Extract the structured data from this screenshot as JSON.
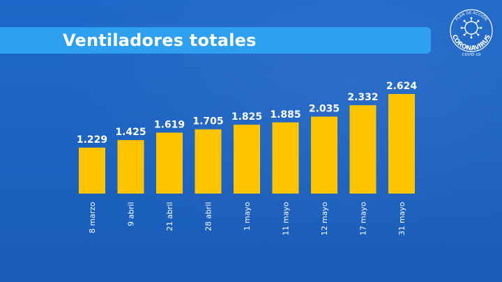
{
  "header": {
    "title": "Ventiladores totales"
  },
  "logo": {
    "top_text": "PLAN DE ACCIÓN",
    "main_text": "CORONAVIRUS",
    "bottom_text": "COVID-19",
    "icon": "virus-icon"
  },
  "colors": {
    "background": "#1d64c4",
    "banner": "#2ea0ef",
    "bar": "#ffc400",
    "text": "#ffffff"
  },
  "chart_data": {
    "type": "bar",
    "title": "Ventiladores totales",
    "xlabel": "",
    "ylabel": "",
    "categories": [
      "8 marzo",
      "9 abril",
      "21 abril",
      "28 abril",
      "1 mayo",
      "11 mayo",
      "12 mayo",
      "17 mayo",
      "31 mayo"
    ],
    "values": [
      1229,
      1425,
      1619,
      1705,
      1825,
      1885,
      2035,
      2332,
      2624
    ],
    "value_labels": [
      "1.229",
      "1.425",
      "1.619",
      "1.705",
      "1.825",
      "1.885",
      "2.035",
      "2.332",
      "2.624"
    ],
    "ylim": [
      600,
      2624
    ],
    "grid": false,
    "legend": "none"
  }
}
